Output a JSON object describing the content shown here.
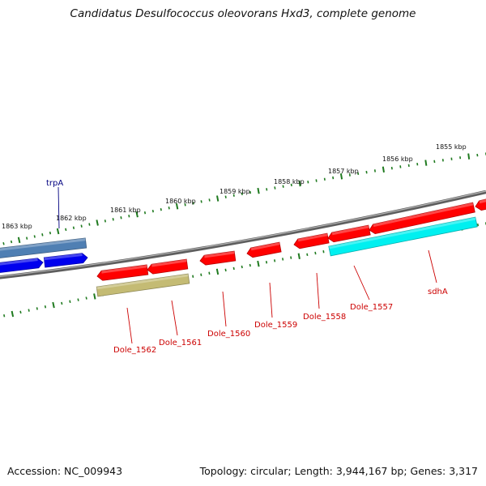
{
  "title": "Candidatus Desulfococcus oleovorans Hxd3, complete genome",
  "footer": {
    "accession": "Accession: NC_009943",
    "summary": "Topology: circular; Length: 3,944,167 bp; Genes: 3,317"
  },
  "colors": {
    "backbone": "#7a7a7a",
    "tick": "#1f7a1f",
    "red_gene": "#ff0000",
    "blue_gene": "#0000ee",
    "steelblue_gene": "#4f7fb3",
    "cyan_gene": "#00f0f0",
    "olive_gene": "#c4bb74",
    "red_label": "#cc0000",
    "blue_label": "#000080"
  },
  "scale_labels": [
    "1863 kbp",
    "1862 kbp",
    "1861 kbp",
    "1860 kbp",
    "1859 kbp",
    "1858 kbp",
    "1857 kbp",
    "1856 kbp",
    "1855 kbp"
  ],
  "gene_labels": [
    {
      "name": "trpA",
      "color": "blue_label"
    },
    {
      "name": "Dole_1562",
      "color": "red_label"
    },
    {
      "name": "Dole_1561",
      "color": "red_label"
    },
    {
      "name": "Dole_1560",
      "color": "red_label"
    },
    {
      "name": "Dole_1559",
      "color": "red_label"
    },
    {
      "name": "Dole_1558",
      "color": "red_label"
    },
    {
      "name": "Dole_1557",
      "color": "red_label"
    },
    {
      "name": "sdhA",
      "color": "red_label"
    }
  ]
}
